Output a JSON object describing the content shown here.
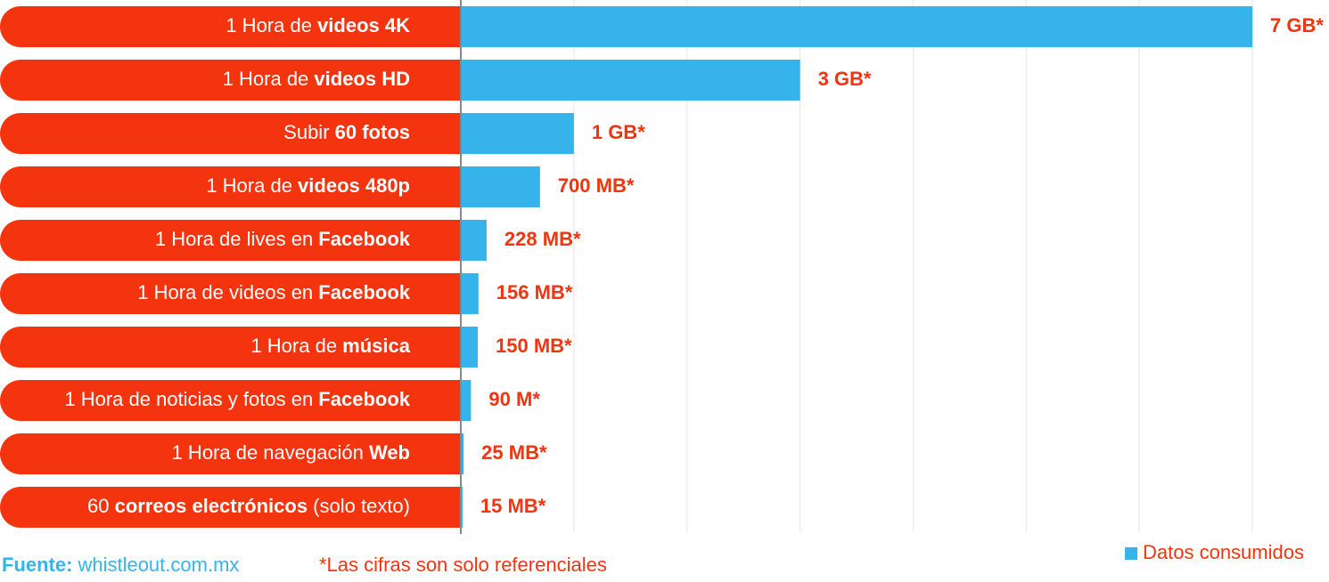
{
  "chart_data": {
    "type": "hbar",
    "categories": [
      [
        {
          "text": "1 Hora de "
        },
        {
          "text": "videos 4K",
          "bold": true
        }
      ],
      [
        {
          "text": "1 Hora de "
        },
        {
          "text": "videos HD",
          "bold": true
        }
      ],
      [
        {
          "text": "Subir "
        },
        {
          "text": "60 fotos",
          "bold": true
        }
      ],
      [
        {
          "text": "1 Hora de "
        },
        {
          "text": "videos 480p",
          "bold": true
        }
      ],
      [
        {
          "text": "1 Hora de lives en "
        },
        {
          "text": "Facebook",
          "bold": true
        }
      ],
      [
        {
          "text": "1 Hora de videos en "
        },
        {
          "text": "Facebook",
          "bold": true
        }
      ],
      [
        {
          "text": "1 Hora de "
        },
        {
          "text": "música",
          "bold": true
        }
      ],
      [
        {
          "text": "1 Hora de noticias y fotos en "
        },
        {
          "text": "Facebook",
          "bold": true
        }
      ],
      [
        {
          "text": "1 Hora de navegación "
        },
        {
          "text": "Web",
          "bold": true
        }
      ],
      [
        {
          "text": "60 "
        },
        {
          "text": "correos electrónicos",
          "bold": true
        },
        {
          "text": " (solo texto)"
        }
      ]
    ],
    "series": [
      {
        "name": "Datos consumidos",
        "color": "#35b3ea",
        "values": [
          7000,
          3000,
          1000,
          700,
          228,
          156,
          150,
          90,
          25,
          15
        ],
        "value_labels": [
          "7 GB*",
          "3 GB*",
          "1 GB*",
          "700 MB*",
          "228 MB*",
          "156 MB*",
          "150 MB*",
          "90 M*",
          "25 MB*",
          "15 MB*"
        ]
      }
    ],
    "label_color": "#f4330f",
    "xlim": [
      0,
      7000
    ],
    "xticks": [
      0,
      1000,
      2000,
      3000,
      4000,
      5000,
      6000,
      7000
    ],
    "grid": true,
    "legend": "bottom-right",
    "source": {
      "label": "Fuente:",
      "text": "whistleout.com.mx"
    },
    "note": "*Las cifras son solo referenciales"
  }
}
